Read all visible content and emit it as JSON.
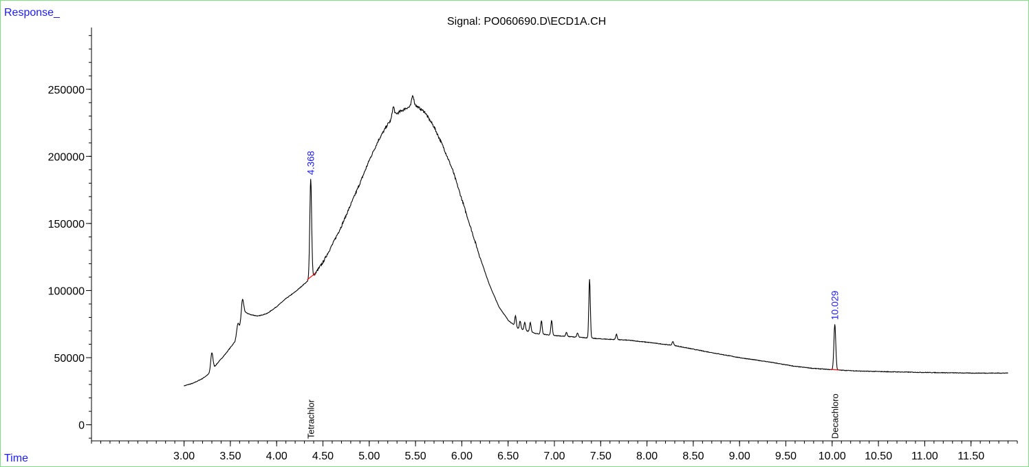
{
  "labels": {
    "y_axis": "Response_",
    "x_axis": "Time",
    "title": "Signal: PO060690.D\\ECD1A.CH"
  },
  "colors": {
    "frame": "#7ee07e",
    "axis_label": "#1a1aff",
    "trace": "#000000",
    "baseline": "#ff0000",
    "peak_label": "#1a1aff",
    "compound_label": "#000000"
  },
  "chart_data": {
    "type": "line",
    "xlim": [
      2.0,
      12.0
    ],
    "ylim": [
      -12000,
      296000
    ],
    "x_ticks": [
      3.0,
      3.5,
      4.0,
      4.5,
      5.0,
      5.5,
      6.0,
      6.5,
      7.0,
      7.5,
      8.0,
      8.5,
      9.0,
      9.5,
      10.0,
      10.5,
      11.0,
      11.5
    ],
    "x_tick_labels": [
      "3.00",
      "3.50",
      "4.00",
      "4.50",
      "5.00",
      "5.50",
      "6.00",
      "6.50",
      "7.00",
      "7.50",
      "8.00",
      "8.50",
      "9.00",
      "9.50",
      "10.00",
      "10.50",
      "11.00",
      "11.50"
    ],
    "y_ticks": [
      0,
      50000,
      100000,
      150000,
      200000,
      250000
    ],
    "y_tick_labels": [
      "0",
      "50000",
      "100000",
      "150000",
      "200000",
      "250000"
    ],
    "x_minor_step": 0.1,
    "y_minor_step": 10000,
    "baseline_points": [
      [
        3.0,
        29000
      ],
      [
        3.1,
        31000
      ],
      [
        3.2,
        34500
      ],
      [
        3.27,
        38000
      ],
      [
        3.35,
        45000
      ],
      [
        3.45,
        53000
      ],
      [
        3.55,
        62000
      ],
      [
        3.6,
        72000
      ],
      [
        3.65,
        84000
      ],
      [
        3.72,
        82000
      ],
      [
        3.8,
        81000
      ],
      [
        3.9,
        83000
      ],
      [
        4.0,
        88000
      ],
      [
        4.1,
        94000
      ],
      [
        4.2,
        99000
      ],
      [
        4.3,
        105000
      ],
      [
        4.4,
        111000
      ],
      [
        4.5,
        121000
      ],
      [
        4.6,
        134000
      ],
      [
        4.7,
        148000
      ],
      [
        4.8,
        164000
      ],
      [
        4.9,
        180000
      ],
      [
        5.0,
        197000
      ],
      [
        5.1,
        212000
      ],
      [
        5.2,
        224000
      ],
      [
        5.3,
        232000
      ],
      [
        5.4,
        236000
      ],
      [
        5.5,
        238000
      ],
      [
        5.6,
        233000
      ],
      [
        5.7,
        222000
      ],
      [
        5.8,
        207000
      ],
      [
        5.9,
        190000
      ],
      [
        6.0,
        168000
      ],
      [
        6.1,
        146000
      ],
      [
        6.2,
        124000
      ],
      [
        6.3,
        104000
      ],
      [
        6.4,
        88000
      ],
      [
        6.5,
        78000
      ],
      [
        6.6,
        72000
      ],
      [
        6.8,
        68000
      ],
      [
        7.0,
        66500
      ],
      [
        7.3,
        65000
      ],
      [
        7.5,
        64000
      ],
      [
        7.8,
        63000
      ],
      [
        8.0,
        61500
      ],
      [
        8.3,
        59000
      ],
      [
        8.6,
        55000
      ],
      [
        9.0,
        50000
      ],
      [
        9.3,
        47000
      ],
      [
        9.6,
        43500
      ],
      [
        9.8,
        42000
      ],
      [
        10.0,
        41000
      ],
      [
        10.3,
        40000
      ],
      [
        10.6,
        39500
      ],
      [
        11.0,
        39000
      ],
      [
        11.5,
        38500
      ],
      [
        11.9,
        38500
      ]
    ],
    "minor_peaks": [
      [
        3.3,
        13000,
        0.012
      ],
      [
        3.58,
        7000,
        0.012
      ],
      [
        3.63,
        14000,
        0.012
      ],
      [
        5.26,
        8000,
        0.012
      ],
      [
        5.47,
        8000,
        0.012
      ],
      [
        6.58,
        8000,
        0.008
      ],
      [
        6.63,
        6000,
        0.008
      ],
      [
        6.68,
        6000,
        0.008
      ],
      [
        6.74,
        7000,
        0.008
      ],
      [
        6.86,
        10000,
        0.008
      ],
      [
        6.97,
        11000,
        0.008
      ],
      [
        7.13,
        3000,
        0.008
      ],
      [
        7.25,
        3000,
        0.008
      ],
      [
        7.38,
        44000,
        0.008
      ],
      [
        7.67,
        4000,
        0.008
      ],
      [
        8.28,
        3000,
        0.008
      ]
    ],
    "integrated_peaks": [
      {
        "rt": "4.368",
        "x": 4.368,
        "height": 74000,
        "compound": "Tetrachlor",
        "baseline_start": [
          4.33,
          108000
        ],
        "baseline_end": [
          4.42,
          113000
        ]
      },
      {
        "rt": "10.029",
        "x": 10.029,
        "height": 34000,
        "compound": "Decachloro",
        "baseline_start": [
          9.98,
          41200
        ],
        "baseline_end": [
          10.08,
          40800
        ]
      }
    ]
  }
}
